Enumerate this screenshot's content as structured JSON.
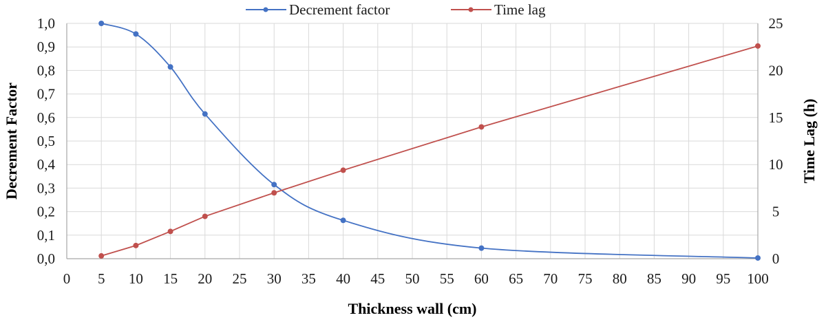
{
  "chart_data": {
    "type": "line",
    "x": [
      5,
      10,
      15,
      20,
      30,
      40,
      60,
      100
    ],
    "series": [
      {
        "name": "Decrement factor",
        "axis": "left",
        "color": "#4472c4",
        "values": [
          1.0,
          0.955,
          0.815,
          0.615,
          0.315,
          0.163,
          0.045,
          0.003
        ]
      },
      {
        "name": "Time lag",
        "axis": "right",
        "color": "#c0504d",
        "values": [
          0.3,
          1.4,
          2.9,
          4.5,
          7.0,
          9.4,
          14.0,
          22.6
        ]
      }
    ],
    "xlabel": "Thickness wall  (cm)",
    "ylabel": "Decrement  Factor",
    "y2label": "Time  Lag  (h)",
    "xlim": [
      0,
      100
    ],
    "ylim": [
      0,
      1
    ],
    "y2lim": [
      0,
      25
    ],
    "x_ticks": [
      "0",
      "5",
      "10",
      "15",
      "20",
      "25",
      "30",
      "35",
      "40",
      "45",
      "50",
      "55",
      "60",
      "65",
      "70",
      "75",
      "80",
      "85",
      "90",
      "95",
      "100"
    ],
    "y_ticks": [
      "0,0",
      "0,1",
      "0,2",
      "0,3",
      "0,4",
      "0,5",
      "0,6",
      "0,7",
      "0,8",
      "0,9",
      "1,0"
    ],
    "y2_ticks": [
      "0",
      "5",
      "10",
      "15",
      "20",
      "25"
    ],
    "grid": true,
    "legend_position": "top"
  }
}
